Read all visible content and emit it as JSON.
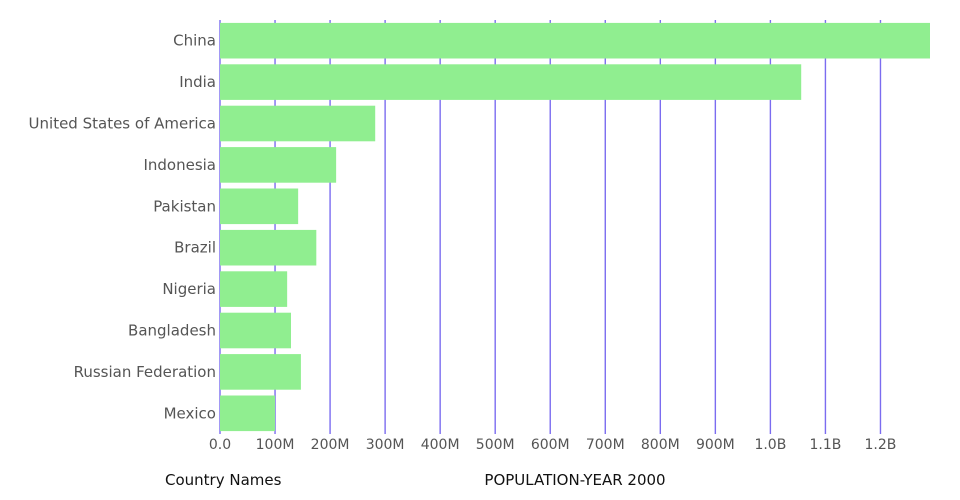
{
  "chart_data": {
    "type": "bar",
    "orientation": "horizontal",
    "categories": [
      "China",
      "India",
      "United States of America",
      "Indonesia",
      "Pakistan",
      "Brazil",
      "Nigeria",
      "Bangladesh",
      "Russian Federation",
      "Mexico"
    ],
    "values": [
      1290000000,
      1056000000,
      282000000,
      211000000,
      142000000,
      175000000,
      122000000,
      129000000,
      147000000,
      100000000
    ],
    "xlim": [
      0,
      1290000000
    ],
    "x_ticks": [
      0,
      100000000,
      200000000,
      300000000,
      400000000,
      500000000,
      600000000,
      700000000,
      800000000,
      900000000,
      1000000000,
      1100000000,
      1200000000
    ],
    "x_tick_labels": [
      "0.0",
      "100M",
      "200M",
      "300M",
      "400M",
      "500M",
      "600M",
      "700M",
      "800M",
      "900M",
      "1.0B",
      "1.1B",
      "1.2B"
    ],
    "xlabel": "POPULATION-YEAR 2000",
    "ylabel": "Country Names",
    "grid": "vertical",
    "colors": {
      "bar": "#90ee90",
      "grid": "#7b6cf0"
    }
  }
}
